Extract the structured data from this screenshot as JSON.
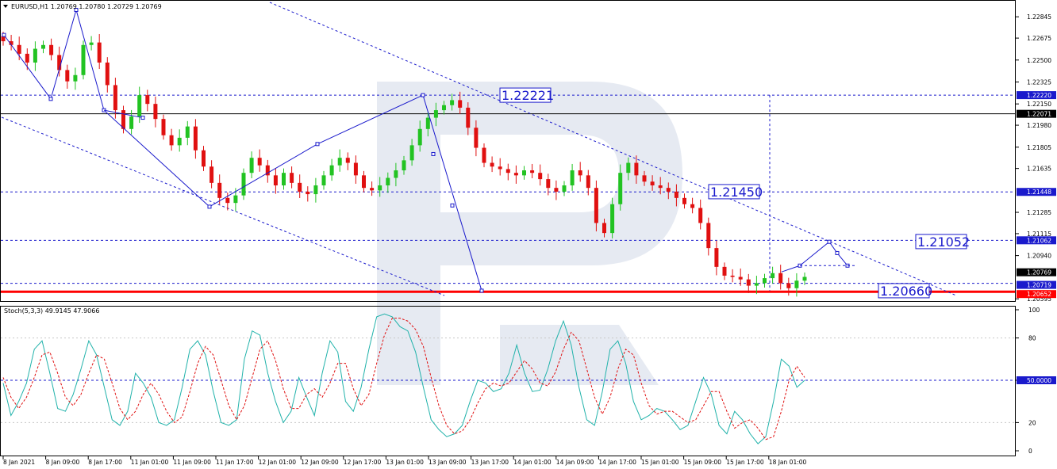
{
  "header": {
    "title": "EURUSD,H1  1.20769 1.20780 1.20729 1.20769",
    "stoch_label": "Stoch(5,3,3) 49.9145 47.9066"
  },
  "colors": {
    "bull": "#22c322",
    "bear": "#e01010",
    "level_line": "#1a1acc",
    "support": "#ff0000",
    "stoch_main": "#20b2aa",
    "stoch_signal": "#e01010"
  },
  "chart_data": [
    {
      "type": "candlestick",
      "symbol": "EURUSD",
      "timeframe": "H1",
      "x_ticks": [
        "8 Jan 2021",
        "8 Jan 09:00",
        "8 Jan 17:00",
        "11 Jan 01:00",
        "11 Jan 09:00",
        "11 Jan 17:00",
        "12 Jan 01:00",
        "12 Jan 09:00",
        "12 Jan 17:00",
        "13 Jan 01:00",
        "13 Jan 09:00",
        "13 Jan 17:00",
        "14 Jan 01:00",
        "14 Jan 09:00",
        "14 Jan 17:00",
        "15 Jan 01:00",
        "15 Jan 09:00",
        "15 Jan 17:00",
        "18 Jan 01:00"
      ],
      "y_ticks": [
        "1.22845",
        "1.22675",
        "1.22500",
        "1.22325",
        "1.22150",
        "1.21980",
        "1.21805",
        "1.21635",
        "1.21285",
        "1.21115",
        "1.20940",
        "1.20595"
      ],
      "ylim": [
        1.2059,
        1.2296
      ],
      "price_labels": [
        "1.22220",
        "1.22071",
        "1.21448",
        "1.21062",
        "1.20769",
        "1.20719",
        "1.20652"
      ],
      "levels": [
        "1.22221",
        "1.21450",
        "1.21052",
        "1.20660"
      ],
      "close_path": [
        1.2265,
        1.2262,
        1.2255,
        1.2248,
        1.2259,
        1.2262,
        1.2254,
        1.2242,
        1.2233,
        1.2238,
        1.2262,
        1.2264,
        1.2248,
        1.223,
        1.221,
        1.2195,
        1.2205,
        1.2222,
        1.2215,
        1.2203,
        1.219,
        1.2182,
        1.2188,
        1.2197,
        1.2178,
        1.2165,
        1.2152,
        1.214,
        1.2136,
        1.2142,
        1.216,
        1.2172,
        1.2166,
        1.2158,
        1.215,
        1.216,
        1.2152,
        1.2145,
        1.2143,
        1.215,
        1.2158,
        1.2166,
        1.2172,
        1.2168,
        1.2158,
        1.2148,
        1.2146,
        1.215,
        1.2156,
        1.2162,
        1.217,
        1.2182,
        1.2195,
        1.2204,
        1.221,
        1.2214,
        1.2218,
        1.2212,
        1.2196,
        1.218,
        1.2168,
        1.2165,
        1.2163,
        1.216,
        1.2158,
        1.2162,
        1.216,
        1.2155,
        1.2148,
        1.2145,
        1.215,
        1.2162,
        1.2158,
        1.2148,
        1.212,
        1.2112,
        1.2135,
        1.216,
        1.2168,
        1.2158,
        1.2153,
        1.215,
        1.2148,
        1.2145,
        1.214,
        1.2135,
        1.2132,
        1.212,
        1.21,
        1.2085,
        1.2078,
        1.2077,
        1.2075,
        1.207,
        1.2072,
        1.2076,
        1.208,
        1.2072,
        1.2068,
        1.2074,
        1.2077
      ],
      "zigzag": [
        1.227,
        1.2219,
        1.229,
        1.221,
        1.2133,
        1.2183,
        1.2222,
        1.2066
      ],
      "projection": [
        1.2081,
        1.2086,
        1.2105,
        1.2096,
        1.2086
      ]
    },
    {
      "type": "line",
      "name": "Stoch(5,3,3)",
      "y_ticks": [
        "100",
        "80",
        "50.0000",
        "20",
        "0"
      ],
      "ylim": [
        0,
        100
      ],
      "series": [
        {
          "values": [
            48,
            25,
            35,
            48,
            72,
            78,
            55,
            30,
            28,
            40,
            58,
            78,
            68,
            45,
            22,
            18,
            28,
            55,
            48,
            38,
            20,
            18,
            22,
            45,
            72,
            78,
            68,
            42,
            20,
            18,
            22,
            65,
            85,
            82,
            55,
            35,
            20,
            28,
            52,
            38,
            25,
            55,
            78,
            70,
            35,
            28,
            45,
            72,
            95,
            97,
            95,
            88,
            85,
            70,
            45,
            22,
            15,
            10,
            12,
            18,
            35,
            50,
            48,
            42,
            44,
            55,
            75,
            55,
            42,
            43,
            58,
            78,
            92,
            75,
            45,
            22,
            18,
            42,
            72,
            78,
            62,
            35,
            22,
            25,
            30,
            28,
            22,
            15,
            18,
            35,
            52,
            40,
            18,
            12,
            28,
            22,
            12,
            5,
            10,
            35,
            65,
            60,
            45,
            50
          ]
        },
        {
          "values": [
            52,
            38,
            30,
            38,
            52,
            68,
            70,
            55,
            38,
            32,
            40,
            55,
            68,
            65,
            48,
            30,
            22,
            28,
            40,
            48,
            40,
            28,
            20,
            24,
            42,
            62,
            74,
            68,
            50,
            32,
            22,
            32,
            52,
            72,
            78,
            64,
            44,
            30,
            30,
            40,
            44,
            38,
            48,
            62,
            62,
            44,
            32,
            40,
            62,
            82,
            94,
            94,
            92,
            86,
            74,
            52,
            32,
            18,
            12,
            14,
            22,
            34,
            44,
            48,
            46,
            48,
            56,
            64,
            58,
            48,
            46,
            56,
            72,
            84,
            78,
            58,
            38,
            26,
            38,
            58,
            72,
            68,
            48,
            32,
            26,
            28,
            28,
            24,
            20,
            22,
            32,
            42,
            42,
            28,
            16,
            20,
            22,
            16,
            8,
            10,
            28,
            50,
            60,
            52
          ]
        }
      ]
    }
  ]
}
